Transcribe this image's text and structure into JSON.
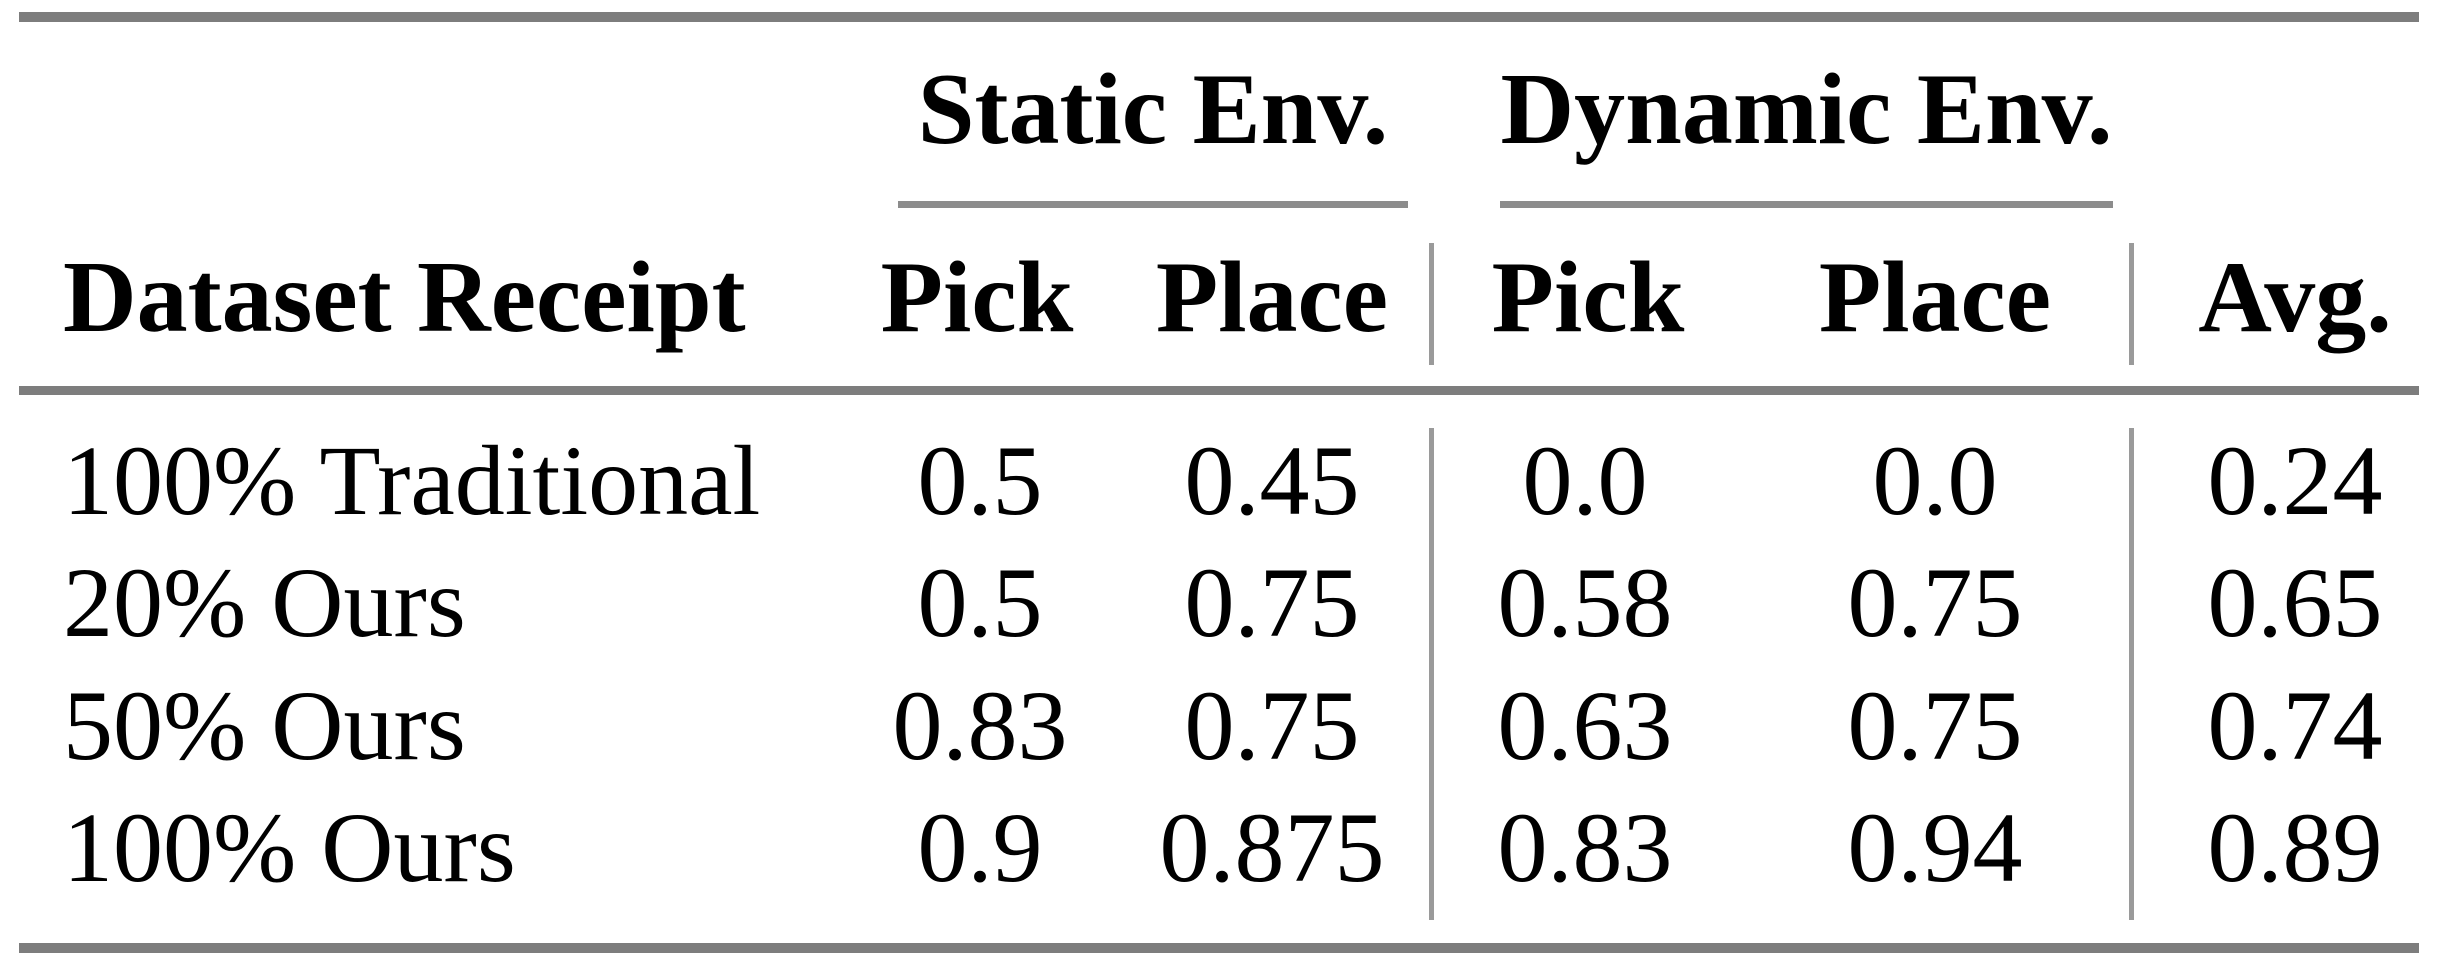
{
  "table": {
    "column_groups": [
      {
        "label": "Static Env."
      },
      {
        "label": "Dynamic Env."
      }
    ],
    "header": {
      "row_label": "Dataset Receipt",
      "static_pick": "Pick",
      "static_place": "Place",
      "dynamic_pick": "Pick",
      "dynamic_place": "Place",
      "avg": "Avg."
    },
    "rows": [
      {
        "label": "100% Traditional",
        "static_pick": "0.5",
        "static_place": "0.45",
        "dynamic_pick": "0.0",
        "dynamic_place": "0.0",
        "avg": "0.24"
      },
      {
        "label": "20% Ours",
        "static_pick": "0.5",
        "static_place": "0.75",
        "dynamic_pick": "0.58",
        "dynamic_place": "0.75",
        "avg": "0.65"
      },
      {
        "label": "50% Ours",
        "static_pick": "0.83",
        "static_place": "0.75",
        "dynamic_pick": "0.63",
        "dynamic_place": "0.75",
        "avg": "0.74"
      },
      {
        "label": "100% Ours",
        "static_pick": "0.9",
        "static_place": "0.875",
        "dynamic_pick": "0.83",
        "dynamic_place": "0.94",
        "avg": "0.89"
      }
    ],
    "style": {
      "text_color": "#000000",
      "background": "#ffffff",
      "heavy_rule_color": "#7d7d7d",
      "group_underline_color": "#8c8c8c",
      "vertical_rule_color": "#9a9a9a"
    }
  },
  "chart_data": {
    "type": "table",
    "columns": [
      "Dataset Receipt",
      "Static Env. Pick",
      "Static Env. Place",
      "Dynamic Env. Pick",
      "Dynamic Env. Place",
      "Avg."
    ],
    "rows": [
      [
        "100% Traditional",
        0.5,
        0.45,
        0.0,
        0.0,
        0.24
      ],
      [
        "20% Ours",
        0.5,
        0.75,
        0.58,
        0.75,
        0.65
      ],
      [
        "50% Ours",
        0.83,
        0.75,
        0.63,
        0.75,
        0.74
      ],
      [
        "100% Ours",
        0.9,
        0.875,
        0.83,
        0.94,
        0.89
      ]
    ]
  }
}
